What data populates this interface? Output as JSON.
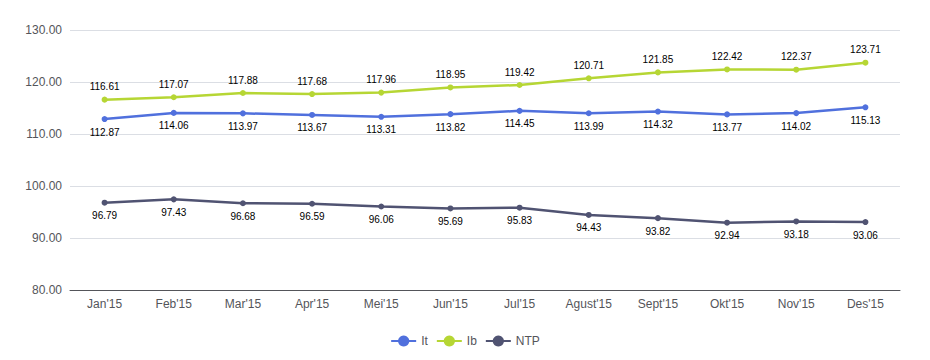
{
  "chart_data": {
    "type": "line",
    "categories": [
      "Jan'15",
      "Feb'15",
      "Mar'15",
      "Apr'15",
      "Mei'15",
      "Jun'15",
      "Jul'15",
      "Agust'15",
      "Sept'15",
      "Okt'15",
      "Nov'15",
      "Des'15"
    ],
    "series": [
      {
        "name": "It",
        "values": [
          112.87,
          114.06,
          113.97,
          113.67,
          113.31,
          113.82,
          114.45,
          113.99,
          114.32,
          113.77,
          114.02,
          115.13
        ]
      },
      {
        "name": "Ib",
        "values": [
          116.61,
          117.07,
          117.88,
          117.68,
          117.96,
          118.95,
          119.42,
          120.71,
          121.85,
          122.42,
          122.37,
          123.71
        ]
      },
      {
        "name": "NTP",
        "values": [
          96.79,
          97.43,
          96.68,
          96.59,
          96.06,
          95.69,
          95.83,
          94.43,
          93.82,
          92.94,
          93.18,
          93.06
        ]
      }
    ],
    "ylim": [
      80.0,
      130.0
    ],
    "yticks": [
      {
        "value": 80.0,
        "label": "80.00"
      },
      {
        "value": 90.0,
        "label": "90.00"
      },
      {
        "value": 100.0,
        "label": "100.00"
      },
      {
        "value": 110.0,
        "label": "110.00"
      },
      {
        "value": 120.0,
        "label": "120.00"
      },
      {
        "value": 130.0,
        "label": "130.00"
      }
    ],
    "grid": true,
    "legend": "bottom",
    "marker": "circle",
    "data_labels": true
  }
}
